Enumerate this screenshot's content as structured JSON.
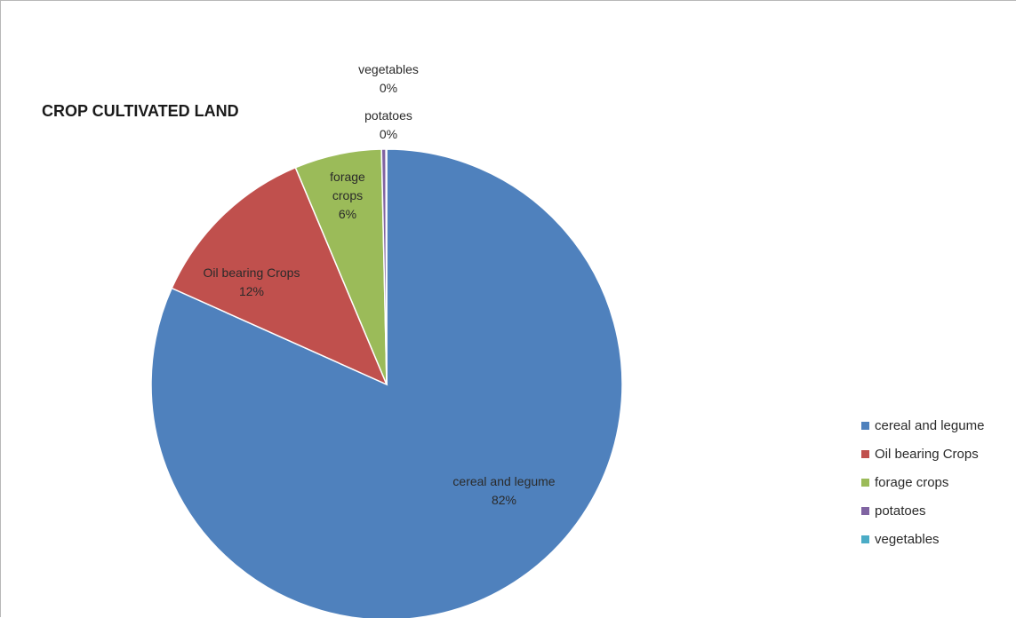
{
  "chart_data": {
    "type": "pie",
    "title": "CROP CULTIVATED LAND",
    "legend_position": "right",
    "slices": [
      {
        "name": "cereal and legume",
        "value": 82,
        "label_lines": [
          "cereal and legume",
          "82%"
        ],
        "color": "#4f81bd"
      },
      {
        "name": "Oil bearing Crops",
        "value": 12,
        "label_lines": [
          "Oil bearing Crops",
          "12%"
        ],
        "color": "#c0504d"
      },
      {
        "name": "forage crops",
        "value": 6,
        "label_lines": [
          "forage",
          "crops",
          "6%"
        ],
        "color": "#9bbb59"
      },
      {
        "name": "potatoes",
        "value": 0.3,
        "label_lines": [
          "potatoes",
          "0%"
        ],
        "color": "#8064a2"
      },
      {
        "name": "vegetables",
        "value": 0.05,
        "label_lines": [
          "vegetables",
          "0%"
        ],
        "color": "#4bacc6"
      }
    ],
    "legend": [
      "cereal and legume",
      "Oil bearing Crops",
      "forage crops",
      "potatoes",
      "vegetables"
    ]
  }
}
